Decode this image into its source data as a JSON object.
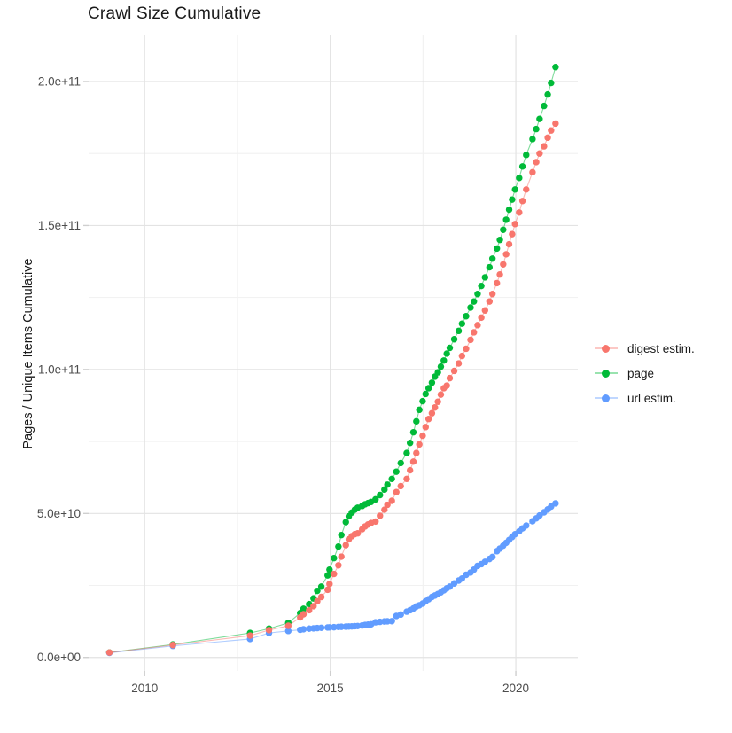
{
  "title": "Crawl Size Cumulative",
  "y_axis": {
    "label": "Pages / Unique Items Cumulative",
    "tick_labels": [
      "0.0e+00",
      "5.0e+10",
      "1.0e+11",
      "1.5e+11",
      "2.0e+11"
    ],
    "tick_values_e9": [
      0,
      50,
      100,
      150,
      200
    ],
    "minor_values_e9": [
      25,
      75,
      125,
      175
    ]
  },
  "x_axis": {
    "tick_labels": [
      "2010",
      "2015",
      "2020"
    ],
    "tick_values": [
      2010,
      2015,
      2020
    ],
    "minor_values": [
      2012.5,
      2017.5
    ]
  },
  "legend": {
    "items": [
      {
        "label": "digest estim.",
        "color": "#F8766D"
      },
      {
        "label": "page",
        "color": "#00BA38"
      },
      {
        "label": "url estim.",
        "color": "#619CFF"
      }
    ]
  },
  "colors": {
    "digest": "#F8766D",
    "page": "#00BA38",
    "url": "#619CFF",
    "grid_major": "#e3e3e3",
    "grid_minor": "#f1f1f1",
    "axis_tick": "#cfcfcf",
    "tick_text": "#4d4d4d",
    "text": "#1a1a1a"
  },
  "chart_data": {
    "type": "scatter",
    "mode": "lines+markers",
    "title": "Crawl Size Cumulative",
    "xlabel": "",
    "ylabel": "Pages / Unique Items Cumulative",
    "legend_position": "right",
    "grid": true,
    "unit_multiplier": 1000000000.0,
    "xlim": [
      2008.49,
      2021.67
    ],
    "ylim_e9": [
      -4.7,
      216
    ],
    "x": [
      2009.05,
      2010.76,
      2012.84,
      2013.35,
      2013.87,
      2014.19,
      2014.28,
      2014.43,
      2014.55,
      2014.65,
      2014.76,
      2014.93,
      2014.98,
      2015.1,
      2015.22,
      2015.3,
      2015.42,
      2015.5,
      2015.58,
      2015.66,
      2015.74,
      2015.86,
      2015.94,
      2016.02,
      2016.1,
      2016.22,
      2016.34,
      2016.46,
      2016.54,
      2016.66,
      2016.78,
      2016.9,
      2017.06,
      2017.15,
      2017.24,
      2017.32,
      2017.4,
      2017.49,
      2017.57,
      2017.65,
      2017.74,
      2017.82,
      2017.9,
      2017.98,
      2018.06,
      2018.14,
      2018.22,
      2018.34,
      2018.46,
      2018.55,
      2018.66,
      2018.78,
      2018.87,
      2018.97,
      2019.07,
      2019.17,
      2019.29,
      2019.37,
      2019.49,
      2019.57,
      2019.66,
      2019.74,
      2019.82,
      2019.9,
      2019.98,
      2020.09,
      2020.18,
      2020.28,
      2020.45,
      2020.55,
      2020.64,
      2020.76,
      2020.86,
      2020.95,
      2021.07
    ],
    "series": [
      {
        "name": "digest estim.",
        "color": "#F8766D",
        "values_e9": [
          1.7,
          4.3,
          7.6,
          9.5,
          11.0,
          13.9,
          15.0,
          16.4,
          17.8,
          19.5,
          21.0,
          23.5,
          25.5,
          29.0,
          32.0,
          35.0,
          39.0,
          41.0,
          42.1,
          42.8,
          43.1,
          44.5,
          45.5,
          46.2,
          46.7,
          47.2,
          49.2,
          51.3,
          53.0,
          54.4,
          57.4,
          59.5,
          62.0,
          65.0,
          68.0,
          71.0,
          74.0,
          77.0,
          80.0,
          82.8,
          84.8,
          86.8,
          88.8,
          91.3,
          93.5,
          94.4,
          97.0,
          99.5,
          102.1,
          104.7,
          107.2,
          110.3,
          112.9,
          115.4,
          118.0,
          120.5,
          123.6,
          126.2,
          130.0,
          133.0,
          136.5,
          140.0,
          143.5,
          147.0,
          150.5,
          154.5,
          158.5,
          162.5,
          168.5,
          172.0,
          175.0,
          177.5,
          180.5,
          183.0,
          185.4
        ]
      },
      {
        "name": "page",
        "color": "#00BA38",
        "values_e9": [
          1.7,
          4.5,
          8.5,
          10.0,
          12.0,
          15.4,
          16.9,
          18.5,
          20.5,
          23.1,
          24.6,
          28.5,
          30.5,
          34.5,
          38.5,
          42.5,
          47.0,
          49.0,
          50.3,
          51.3,
          52.0,
          52.6,
          53.2,
          53.6,
          54.0,
          54.9,
          56.4,
          58.3,
          60.0,
          62.0,
          64.5,
          67.5,
          71.0,
          74.5,
          78.2,
          82.0,
          86.0,
          89.0,
          91.5,
          93.5,
          95.4,
          97.5,
          99.0,
          101.0,
          103.1,
          105.5,
          107.5,
          110.5,
          113.4,
          115.9,
          118.5,
          121.5,
          123.6,
          126.2,
          129.0,
          132.0,
          135.5,
          138.5,
          142.0,
          145.0,
          148.5,
          152.0,
          155.5,
          159.0,
          162.5,
          166.5,
          170.5,
          174.5,
          180.0,
          183.5,
          187.0,
          191.5,
          195.5,
          199.5,
          205.0
        ]
      },
      {
        "name": "url estim.",
        "color": "#619CFF",
        "values_e9": [
          1.6,
          4.0,
          6.4,
          8.5,
          9.2,
          9.6,
          9.8,
          10.0,
          10.1,
          10.2,
          10.3,
          10.4,
          10.45,
          10.5,
          10.6,
          10.65,
          10.7,
          10.75,
          10.8,
          10.85,
          10.9,
          11.1,
          11.3,
          11.4,
          11.5,
          12.2,
          12.35,
          12.5,
          12.55,
          12.6,
          14.4,
          14.9,
          15.9,
          16.4,
          17.0,
          17.7,
          18.1,
          18.7,
          19.5,
          20.2,
          21.0,
          21.5,
          22.0,
          22.6,
          23.3,
          24.0,
          24.6,
          25.7,
          26.7,
          27.4,
          28.7,
          29.5,
          30.5,
          31.8,
          32.4,
          33.2,
          34.2,
          34.9,
          36.9,
          37.8,
          38.8,
          39.8,
          40.8,
          41.8,
          42.8,
          43.8,
          44.8,
          45.8,
          47.3,
          48.3,
          49.3,
          50.4,
          51.4,
          52.4,
          53.5
        ]
      }
    ],
    "draw_order": [
      "page",
      "url estim.",
      "digest estim."
    ]
  }
}
